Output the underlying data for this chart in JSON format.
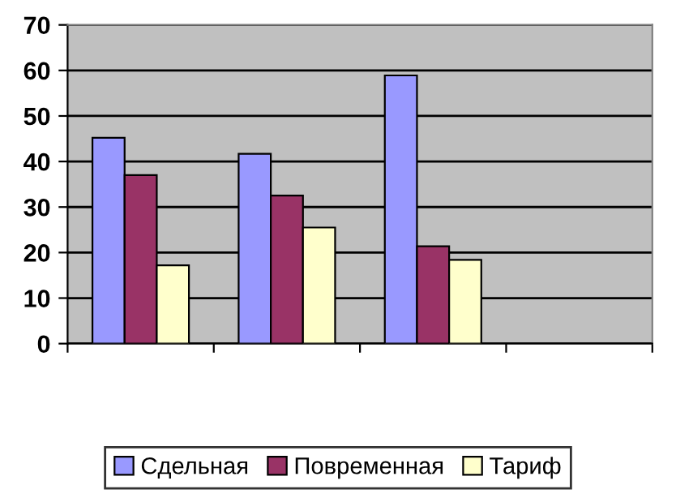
{
  "chart_data": {
    "type": "bar",
    "categories": [
      null,
      null,
      null,
      null
    ],
    "series": [
      {
        "name": "Сдельная",
        "color": "#9999ff",
        "values": [
          45.2,
          41.7,
          58.9,
          null
        ]
      },
      {
        "name": "Повременная",
        "color": "#993366",
        "values": [
          37.0,
          32.5,
          21.4,
          null
        ]
      },
      {
        "name": "Тариф",
        "color": "#ffffcc",
        "values": [
          17.2,
          25.5,
          18.4,
          null
        ]
      }
    ],
    "ylim": [
      0,
      70
    ],
    "yticks": [
      0,
      10,
      20,
      30,
      40,
      50,
      60,
      70
    ],
    "grid": "y",
    "legend": "bottom"
  }
}
